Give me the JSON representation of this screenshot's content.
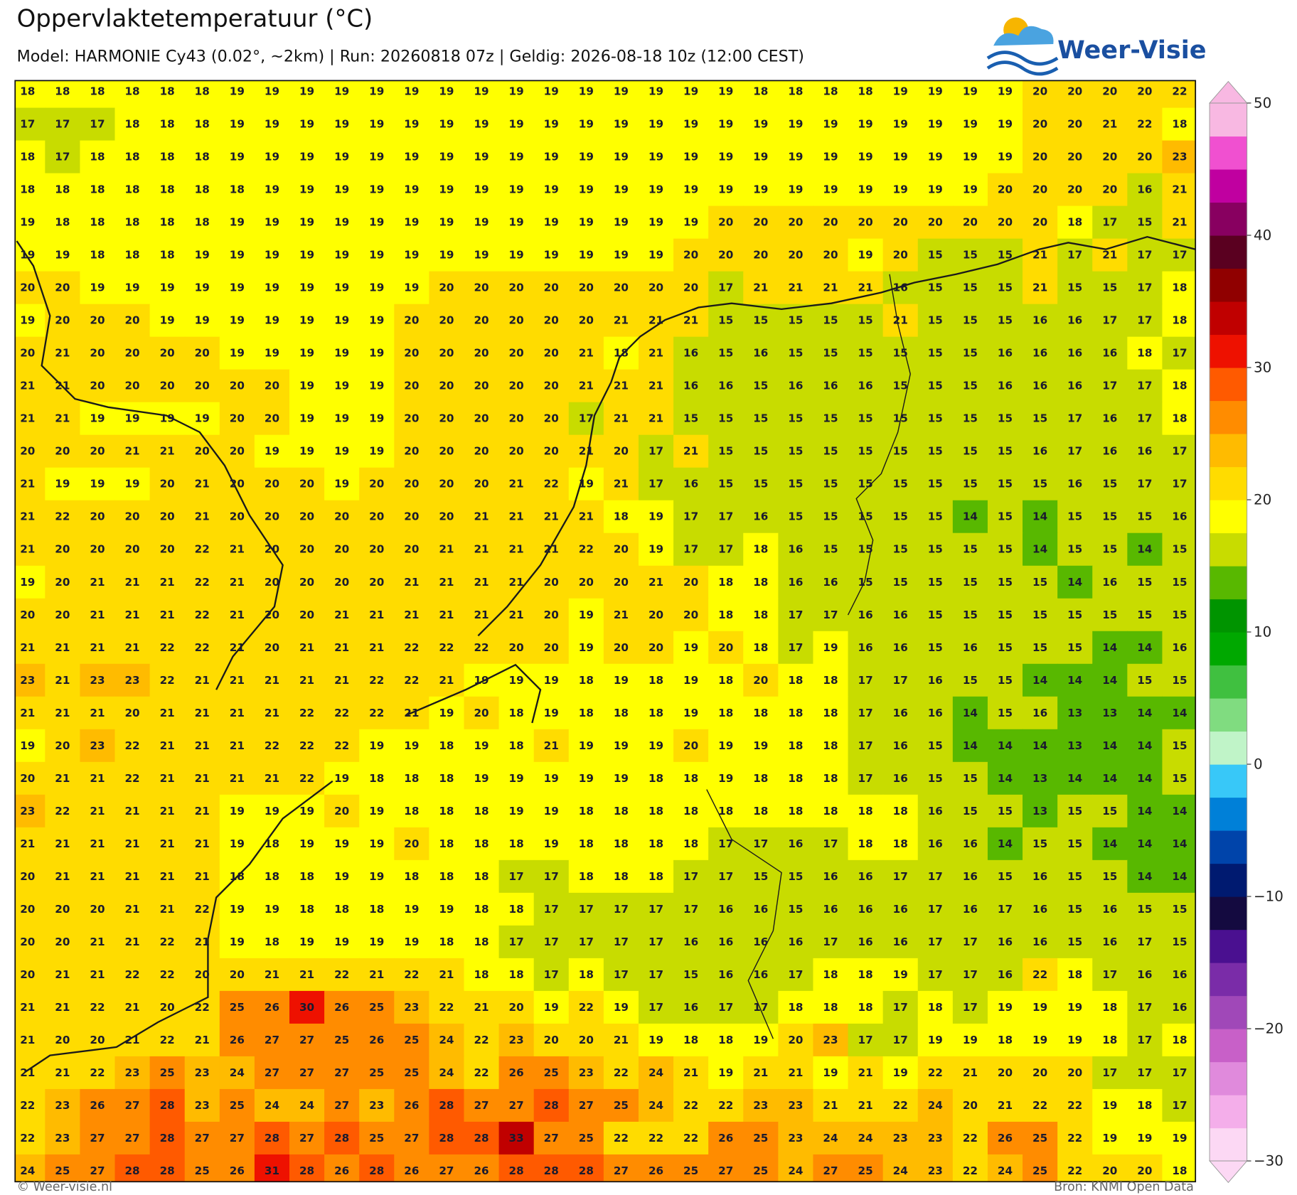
{
  "header": {
    "title": "Oppervlaktetemperatuur (°C)",
    "subtitle": "Model: HARMONIE Cy43 (0.02°, ~2km)  |  Run: 20260818 07z  |  Geldig: 2026-08-18 10z (12:00 CEST)"
  },
  "logo": {
    "text": "Weer-Visie"
  },
  "grid": {
    "rows": [
      [
        18,
        18,
        18,
        18,
        18,
        18,
        19,
        19,
        19,
        19,
        19,
        19,
        19,
        19,
        19,
        19,
        19,
        19,
        19,
        19,
        19,
        18,
        18,
        18,
        18,
        19,
        19,
        19,
        19,
        20,
        20,
        20,
        20,
        22
      ],
      [
        17,
        17,
        17,
        18,
        18,
        18,
        19,
        19,
        19,
        19,
        19,
        19,
        19,
        19,
        19,
        19,
        19,
        19,
        19,
        19,
        19,
        19,
        19,
        19,
        19,
        19,
        19,
        19,
        19,
        20,
        20,
        21,
        22,
        18
      ],
      [
        18,
        17,
        18,
        18,
        18,
        18,
        19,
        19,
        19,
        19,
        19,
        19,
        19,
        19,
        19,
        19,
        19,
        19,
        19,
        19,
        19,
        19,
        19,
        19,
        19,
        19,
        19,
        19,
        19,
        20,
        20,
        20,
        20,
        23
      ],
      [
        18,
        18,
        18,
        18,
        18,
        18,
        18,
        19,
        19,
        19,
        19,
        19,
        19,
        19,
        19,
        19,
        19,
        19,
        19,
        19,
        19,
        19,
        19,
        19,
        19,
        19,
        19,
        19,
        20,
        20,
        20,
        20,
        16,
        21
      ],
      [
        19,
        18,
        18,
        18,
        18,
        18,
        19,
        19,
        19,
        19,
        19,
        19,
        19,
        19,
        19,
        19,
        19,
        19,
        19,
        19,
        20,
        20,
        20,
        20,
        20,
        20,
        20,
        20,
        20,
        20,
        18,
        17,
        15,
        21
      ],
      [
        19,
        19,
        18,
        18,
        18,
        19,
        19,
        19,
        19,
        19,
        19,
        19,
        19,
        19,
        19,
        19,
        19,
        19,
        19,
        20,
        20,
        20,
        20,
        20,
        19,
        20,
        15,
        15,
        15,
        21,
        17,
        21,
        17,
        17
      ],
      [
        20,
        20,
        19,
        19,
        19,
        19,
        19,
        19,
        19,
        19,
        19,
        19,
        20,
        20,
        20,
        20,
        20,
        20,
        20,
        20,
        17,
        21,
        21,
        21,
        21,
        16,
        15,
        15,
        15,
        21,
        15,
        15,
        17,
        18
      ],
      [
        19,
        20,
        20,
        20,
        19,
        19,
        19,
        19,
        19,
        19,
        19,
        20,
        20,
        20,
        20,
        20,
        20,
        21,
        21,
        21,
        15,
        15,
        15,
        15,
        15,
        21,
        15,
        15,
        15,
        16,
        16,
        17,
        17,
        18
      ],
      [
        20,
        21,
        20,
        20,
        20,
        20,
        19,
        19,
        19,
        19,
        19,
        20,
        20,
        20,
        20,
        20,
        21,
        18,
        21,
        16,
        15,
        16,
        15,
        15,
        15,
        15,
        15,
        15,
        16,
        16,
        16,
        16,
        18,
        17
      ],
      [
        21,
        21,
        20,
        20,
        20,
        20,
        20,
        20,
        19,
        19,
        19,
        20,
        20,
        20,
        20,
        20,
        21,
        21,
        21,
        16,
        16,
        15,
        16,
        16,
        16,
        15,
        15,
        15,
        16,
        16,
        16,
        17,
        17,
        18
      ],
      [
        21,
        21,
        19,
        19,
        19,
        19,
        20,
        20,
        19,
        19,
        19,
        20,
        20,
        20,
        20,
        20,
        17,
        21,
        21,
        15,
        15,
        15,
        15,
        15,
        15,
        15,
        15,
        15,
        15,
        15,
        17,
        16,
        17,
        18
      ],
      [
        20,
        20,
        20,
        21,
        21,
        20,
        20,
        19,
        19,
        19,
        19,
        20,
        20,
        20,
        20,
        20,
        21,
        20,
        17,
        21,
        15,
        15,
        15,
        15,
        15,
        15,
        15,
        15,
        15,
        16,
        17,
        16,
        16,
        17
      ],
      [
        21,
        19,
        19,
        19,
        20,
        21,
        20,
        20,
        20,
        19,
        20,
        20,
        20,
        20,
        21,
        22,
        19,
        21,
        17,
        16,
        15,
        15,
        15,
        15,
        15,
        15,
        15,
        15,
        15,
        15,
        16,
        15,
        17,
        17
      ],
      [
        21,
        22,
        20,
        20,
        20,
        21,
        20,
        20,
        20,
        20,
        20,
        20,
        20,
        21,
        21,
        21,
        21,
        18,
        19,
        17,
        17,
        16,
        15,
        15,
        15,
        15,
        15,
        14,
        15,
        14,
        15,
        15,
        15,
        16
      ],
      [
        21,
        20,
        20,
        20,
        20,
        22,
        21,
        20,
        20,
        20,
        20,
        20,
        21,
        21,
        21,
        21,
        22,
        20,
        19,
        17,
        17,
        18,
        16,
        15,
        15,
        15,
        15,
        15,
        15,
        14,
        15,
        15,
        14,
        15
      ],
      [
        19,
        20,
        21,
        21,
        21,
        22,
        21,
        20,
        20,
        20,
        20,
        21,
        21,
        21,
        21,
        20,
        20,
        20,
        21,
        20,
        18,
        18,
        16,
        16,
        15,
        15,
        15,
        15,
        15,
        15,
        14,
        16,
        15,
        15
      ],
      [
        20,
        20,
        21,
        21,
        21,
        22,
        21,
        20,
        20,
        21,
        21,
        21,
        21,
        21,
        21,
        20,
        19,
        21,
        20,
        20,
        18,
        18,
        17,
        17,
        16,
        16,
        15,
        15,
        15,
        15,
        15,
        15,
        15,
        15
      ],
      [
        21,
        21,
        21,
        21,
        22,
        22,
        21,
        20,
        21,
        21,
        21,
        22,
        22,
        22,
        20,
        20,
        19,
        20,
        20,
        19,
        20,
        18,
        17,
        19,
        16,
        16,
        15,
        16,
        15,
        15,
        15,
        14,
        14,
        16
      ],
      [
        23,
        21,
        23,
        23,
        22,
        21,
        21,
        21,
        21,
        21,
        22,
        22,
        21,
        19,
        19,
        19,
        18,
        19,
        18,
        19,
        18,
        20,
        18,
        18,
        17,
        17,
        16,
        15,
        15,
        14,
        14,
        14,
        15,
        15
      ],
      [
        21,
        21,
        21,
        20,
        21,
        21,
        21,
        21,
        22,
        22,
        22,
        21,
        19,
        20,
        18,
        19,
        18,
        18,
        18,
        19,
        18,
        18,
        18,
        18,
        17,
        16,
        16,
        14,
        15,
        16,
        13,
        13,
        14,
        14
      ],
      [
        19,
        20,
        23,
        22,
        21,
        21,
        21,
        22,
        22,
        22,
        19,
        19,
        18,
        19,
        18,
        21,
        19,
        19,
        19,
        20,
        19,
        19,
        18,
        18,
        17,
        16,
        15,
        14,
        14,
        14,
        13,
        14,
        14,
        15
      ],
      [
        20,
        21,
        21,
        22,
        21,
        21,
        21,
        21,
        22,
        19,
        18,
        18,
        18,
        19,
        19,
        19,
        19,
        19,
        18,
        18,
        19,
        18,
        18,
        18,
        17,
        16,
        15,
        15,
        14,
        13,
        14,
        14,
        14,
        15
      ],
      [
        23,
        22,
        21,
        21,
        21,
        21,
        19,
        19,
        19,
        20,
        19,
        18,
        18,
        18,
        19,
        19,
        18,
        18,
        18,
        18,
        18,
        18,
        18,
        18,
        18,
        18,
        16,
        15,
        15,
        13,
        15,
        15,
        14,
        14
      ],
      [
        21,
        21,
        21,
        21,
        21,
        21,
        19,
        18,
        19,
        19,
        19,
        20,
        18,
        18,
        18,
        19,
        18,
        18,
        18,
        18,
        17,
        17,
        16,
        17,
        18,
        18,
        16,
        16,
        14,
        15,
        15,
        14,
        14,
        14
      ],
      [
        20,
        21,
        21,
        21,
        21,
        21,
        18,
        18,
        18,
        19,
        19,
        18,
        18,
        18,
        17,
        17,
        18,
        18,
        18,
        17,
        17,
        15,
        15,
        16,
        16,
        17,
        17,
        16,
        15,
        16,
        15,
        15,
        14,
        14
      ],
      [
        20,
        20,
        20,
        21,
        21,
        22,
        19,
        19,
        18,
        18,
        18,
        19,
        19,
        18,
        18,
        17,
        17,
        17,
        17,
        17,
        16,
        16,
        15,
        16,
        16,
        16,
        17,
        16,
        17,
        16,
        15,
        16,
        15,
        15
      ],
      [
        20,
        20,
        21,
        21,
        22,
        21,
        19,
        18,
        19,
        19,
        19,
        19,
        18,
        18,
        17,
        17,
        17,
        17,
        17,
        16,
        16,
        16,
        16,
        17,
        16,
        16,
        17,
        17,
        16,
        16,
        15,
        16,
        17,
        15
      ],
      [
        20,
        21,
        21,
        22,
        22,
        20,
        20,
        21,
        21,
        22,
        21,
        22,
        21,
        18,
        18,
        17,
        18,
        17,
        17,
        15,
        16,
        16,
        17,
        18,
        18,
        19,
        17,
        17,
        16,
        22,
        18,
        17,
        16,
        16
      ],
      [
        21,
        21,
        22,
        21,
        20,
        22,
        25,
        26,
        30,
        26,
        25,
        23,
        22,
        21,
        20,
        19,
        22,
        19,
        17,
        16,
        17,
        17,
        18,
        18,
        18,
        17,
        18,
        17,
        19,
        19,
        19,
        18,
        17,
        16
      ],
      [
        21,
        20,
        20,
        21,
        22,
        21,
        26,
        27,
        27,
        25,
        26,
        25,
        24,
        22,
        23,
        20,
        20,
        21,
        19,
        18,
        18,
        19,
        20,
        23,
        17,
        17,
        19,
        19,
        18,
        19,
        19,
        18,
        17,
        18
      ],
      [
        21,
        21,
        22,
        23,
        25,
        23,
        24,
        27,
        27,
        27,
        25,
        25,
        24,
        22,
        26,
        25,
        23,
        22,
        24,
        21,
        19,
        21,
        21,
        19,
        21,
        19,
        22,
        21,
        20,
        20,
        20,
        17,
        17,
        17
      ],
      [
        22,
        23,
        26,
        27,
        28,
        23,
        25,
        24,
        24,
        27,
        23,
        26,
        28,
        27,
        27,
        28,
        27,
        25,
        24,
        22,
        22,
        23,
        23,
        21,
        21,
        22,
        24,
        20,
        21,
        22,
        22,
        19,
        18,
        17
      ],
      [
        22,
        23,
        27,
        27,
        28,
        27,
        27,
        28,
        27,
        28,
        25,
        27,
        28,
        28,
        33,
        27,
        25,
        22,
        22,
        22,
        26,
        25,
        23,
        24,
        24,
        23,
        23,
        22,
        26,
        25,
        22,
        19,
        19,
        19
      ],
      [
        24,
        25,
        27,
        28,
        28,
        25,
        26,
        31,
        28,
        26,
        28,
        26,
        27,
        26,
        28,
        28,
        28,
        27,
        26,
        25,
        27,
        25,
        24,
        27,
        25,
        24,
        23,
        22,
        24,
        25,
        22,
        20,
        20,
        18
      ]
    ]
  },
  "colorbar": {
    "lim": [
      -30,
      50
    ],
    "ticks": [
      {
        "value": -30,
        "label": "−30"
      },
      {
        "value": -20,
        "label": "−20"
      },
      {
        "value": -10,
        "label": "−10"
      },
      0,
      10,
      20,
      30,
      40,
      50
    ],
    "colors": [
      "#fcd8f4",
      "#f4aeea",
      "#e08adc",
      "#c860c8",
      "#a048b8",
      "#7a2ca8",
      "#4a1090",
      "#140a40",
      "#001a70",
      "#0044aa",
      "#0080d8",
      "#38c8f8",
      "#c0f4c8",
      "#80dc80",
      "#40c040",
      "#00a800",
      "#009400",
      "#58b800",
      "#c8dc00",
      "#ffff00",
      "#ffdc00",
      "#ffbb00",
      "#ff8c00",
      "#ff5a00",
      "#ee1100",
      "#c00000",
      "#900000",
      "#5a0020",
      "#880060",
      "#c000a0",
      "#f050d0",
      "#f8b8e2"
    ]
  },
  "footer": {
    "left": "© Weer-visie.nl",
    "right": "Bron: KNMI Open Data"
  }
}
